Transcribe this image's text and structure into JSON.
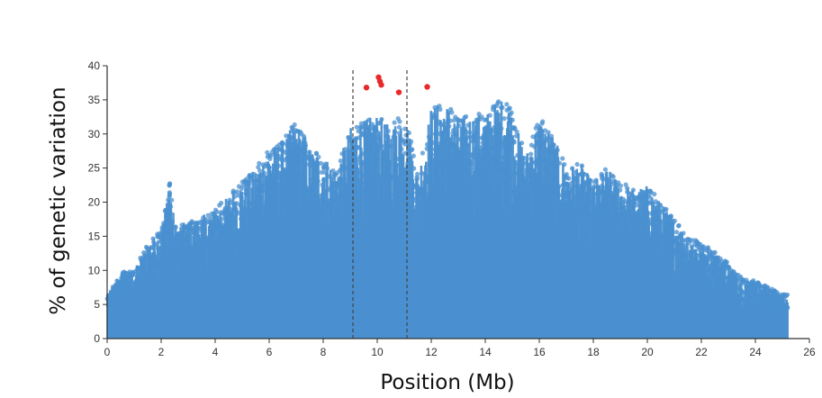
{
  "chart_data": {
    "type": "scatter",
    "title": "",
    "xlabel": "Position (Mb)",
    "ylabel": "% of genetic variation",
    "xlim": [
      0,
      26
    ],
    "ylim": [
      0,
      40
    ],
    "xticks": [
      0,
      2,
      4,
      6,
      8,
      10,
      12,
      14,
      16,
      18,
      20,
      22,
      24,
      26
    ],
    "yticks": [
      0,
      5,
      10,
      15,
      20,
      25,
      30,
      35,
      40
    ],
    "grid": false,
    "legend": "none",
    "colors": {
      "points": "#4a90d0",
      "highlight": "#e8292b",
      "axis": "#333333",
      "dashed": "#444444"
    },
    "vertical_dashed_lines_x": [
      9.1,
      11.1
    ],
    "series": [
      {
        "color": "#4a90d0",
        "description_shape": "dense column cloud from 0 up to envelope",
        "envelope": [
          [
            0.1,
            7
          ],
          [
            0.5,
            10
          ],
          [
            1.0,
            10
          ],
          [
            1.5,
            14
          ],
          [
            2.0,
            16
          ],
          [
            2.3,
            23.5
          ],
          [
            2.5,
            17
          ],
          [
            3.0,
            17
          ],
          [
            3.5,
            18
          ],
          [
            4.0,
            19
          ],
          [
            4.5,
            21
          ],
          [
            5.0,
            23
          ],
          [
            5.5,
            25
          ],
          [
            6.0,
            28
          ],
          [
            6.5,
            29
          ],
          [
            7.0,
            32
          ],
          [
            7.5,
            28
          ],
          [
            8.0,
            27
          ],
          [
            8.5,
            25
          ],
          [
            9.0,
            31
          ],
          [
            9.5,
            32
          ],
          [
            10.0,
            33
          ],
          [
            10.5,
            31
          ],
          [
            11.0,
            34
          ],
          [
            11.5,
            24
          ],
          [
            12.0,
            34
          ],
          [
            12.5,
            35
          ],
          [
            13.0,
            32
          ],
          [
            13.5,
            33
          ],
          [
            14.0,
            33
          ],
          [
            14.5,
            35
          ],
          [
            14.8,
            35.5
          ],
          [
            15.0,
            33
          ],
          [
            15.5,
            27
          ],
          [
            16.0,
            32.5
          ],
          [
            16.5,
            30
          ],
          [
            17.0,
            25
          ],
          [
            17.5,
            26
          ],
          [
            18.0,
            23
          ],
          [
            18.5,
            25
          ],
          [
            19.0,
            23
          ],
          [
            19.5,
            22
          ],
          [
            20.0,
            22.5
          ],
          [
            20.5,
            20
          ],
          [
            21.0,
            17.5
          ],
          [
            21.5,
            15
          ],
          [
            22.0,
            14
          ],
          [
            22.5,
            13
          ],
          [
            23.0,
            11
          ],
          [
            23.5,
            9
          ],
          [
            24.0,
            8.5
          ],
          [
            24.5,
            7.5
          ],
          [
            25.0,
            7
          ],
          [
            25.2,
            6.5
          ]
        ]
      },
      {
        "color": "#e8292b",
        "points": [
          [
            9.6,
            36.8
          ],
          [
            10.05,
            38.3
          ],
          [
            10.1,
            37.7
          ],
          [
            10.15,
            37.2
          ],
          [
            10.8,
            36.1
          ],
          [
            11.85,
            36.9
          ]
        ]
      }
    ]
  }
}
